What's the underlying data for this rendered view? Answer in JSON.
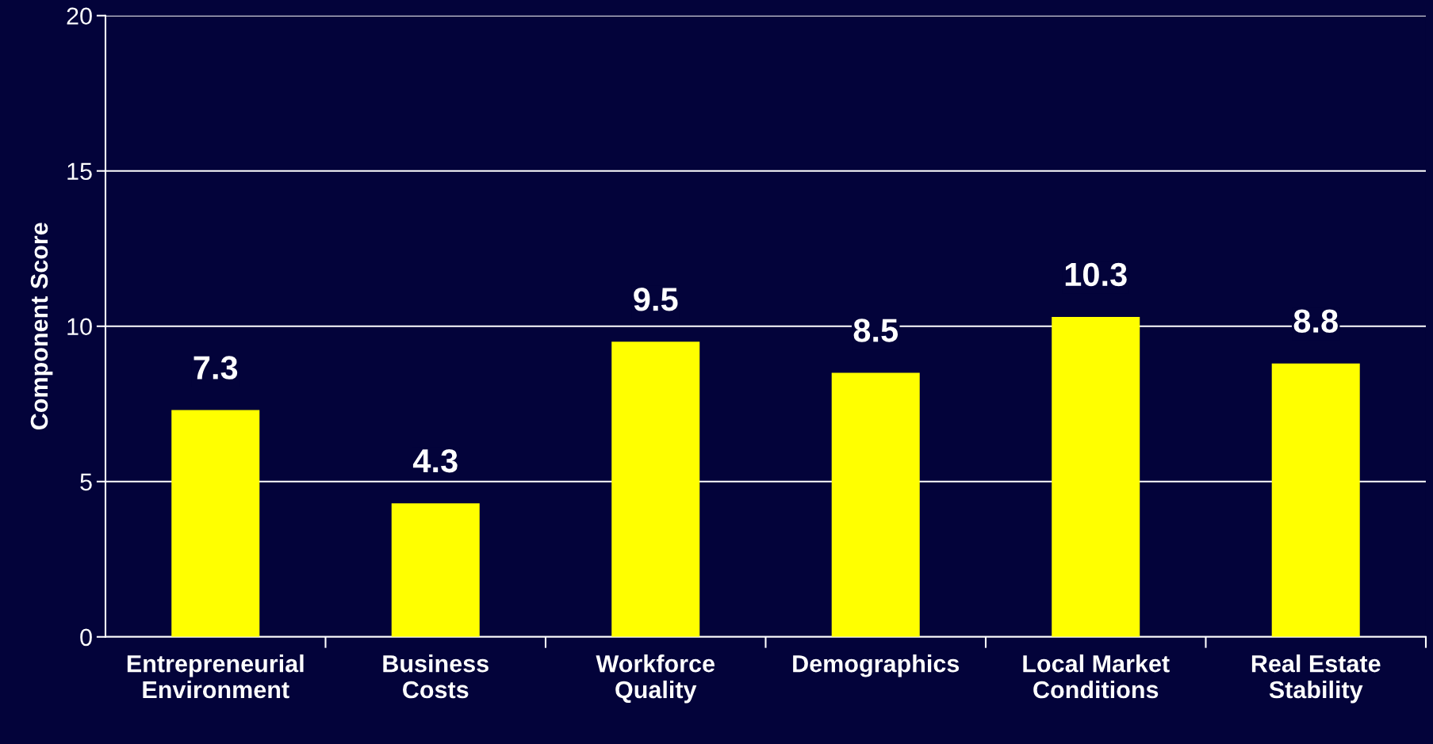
{
  "chart_data": {
    "type": "bar",
    "ylabel": "Component Score",
    "categories": [
      "Entrepreneurial\nEnvironment",
      "Business\nCosts",
      "Workforce\nQuality",
      "Demographics",
      "Local Market\nConditions",
      "Real Estate\nStability"
    ],
    "values": [
      7.3,
      4.3,
      9.5,
      8.5,
      10.3,
      8.8
    ],
    "color": "#ffff00",
    "ylim": [
      0,
      20
    ],
    "yticks": [
      0,
      5,
      10,
      15,
      20
    ],
    "grid": "y",
    "data_labels": true
  }
}
